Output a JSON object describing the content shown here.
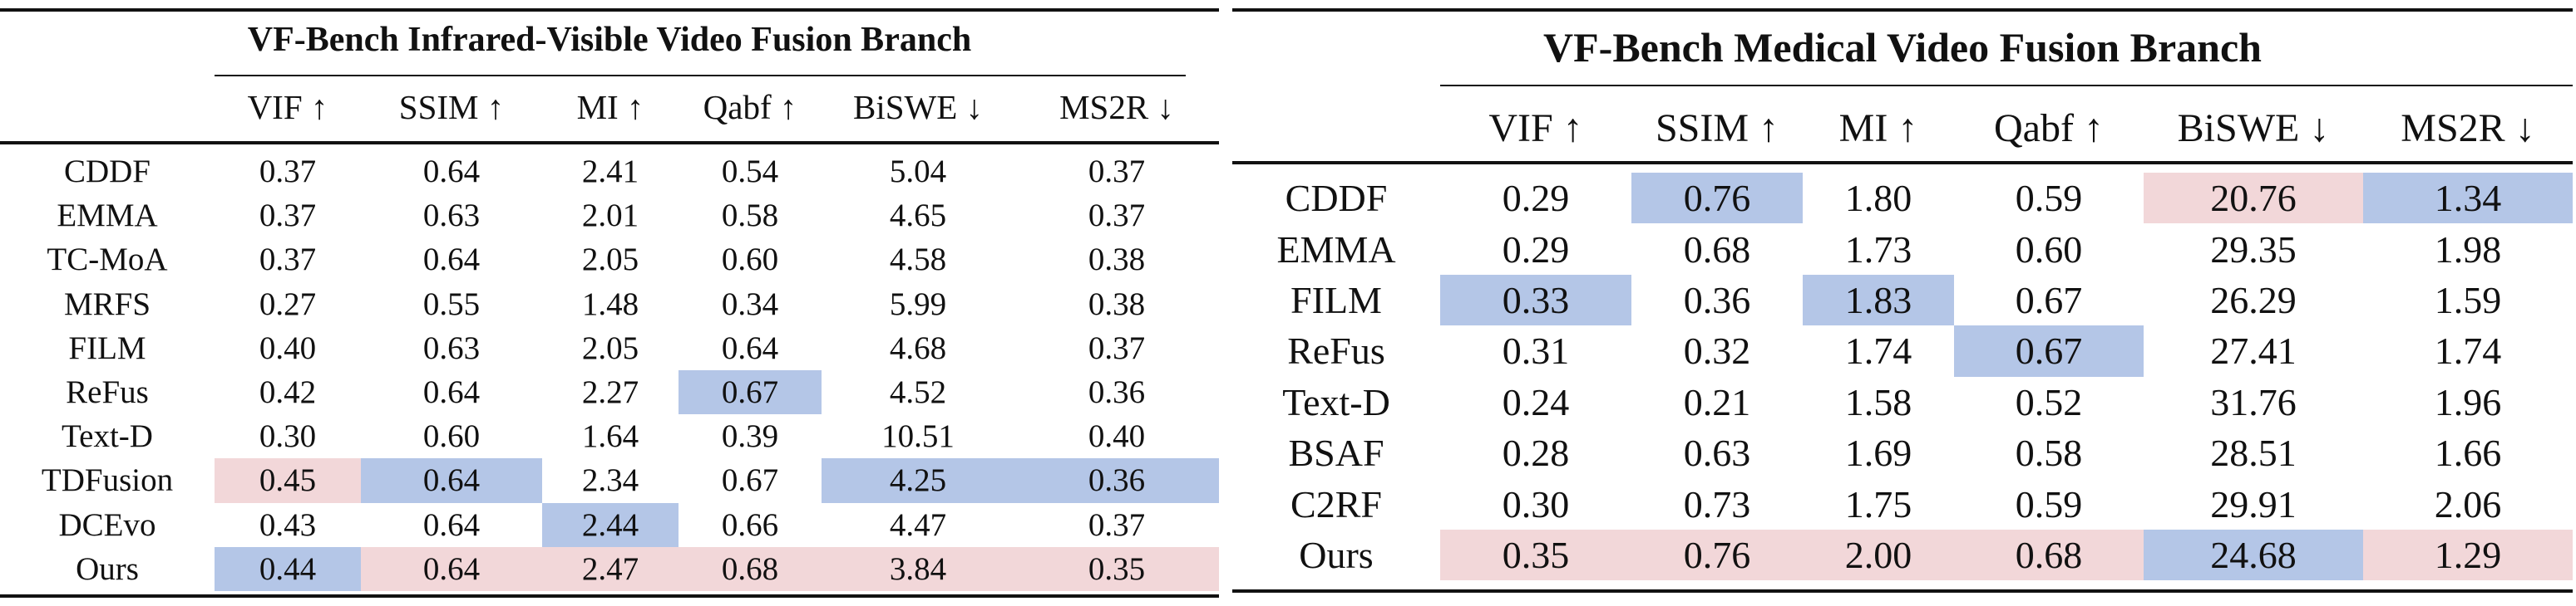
{
  "left_table": {
    "title": "VF-Bench Infrared-Visible Video Fusion Branch",
    "headers": [
      "VIF ↑",
      "SSIM ↑",
      "MI ↑",
      "Qabf ↑",
      "BiSWE ↓",
      "MS2R ↓"
    ],
    "rows": [
      {
        "method": "CDDF",
        "values": [
          "0.37",
          "0.64",
          "2.41",
          "0.54",
          "5.04",
          "0.37"
        ],
        "highlight": [
          "",
          "",
          "",
          "",
          "",
          ""
        ]
      },
      {
        "method": "EMMA",
        "values": [
          "0.37",
          "0.63",
          "2.01",
          "0.58",
          "4.65",
          "0.37"
        ],
        "highlight": [
          "",
          "",
          "",
          "",
          "",
          ""
        ]
      },
      {
        "method": "TC-MoA",
        "values": [
          "0.37",
          "0.64",
          "2.05",
          "0.60",
          "4.58",
          "0.38"
        ],
        "highlight": [
          "",
          "",
          "",
          "",
          "",
          ""
        ]
      },
      {
        "method": "MRFS",
        "values": [
          "0.27",
          "0.55",
          "1.48",
          "0.34",
          "5.99",
          "0.38"
        ],
        "highlight": [
          "",
          "",
          "",
          "",
          "",
          ""
        ]
      },
      {
        "method": "FILM",
        "values": [
          "0.40",
          "0.63",
          "2.05",
          "0.64",
          "4.68",
          "0.37"
        ],
        "highlight": [
          "",
          "",
          "",
          "",
          "",
          ""
        ]
      },
      {
        "method": "ReFus",
        "values": [
          "0.42",
          "0.64",
          "2.27",
          "0.67",
          "4.52",
          "0.36"
        ],
        "highlight": [
          "",
          "",
          "",
          "blue",
          "",
          ""
        ]
      },
      {
        "method": "Text-D",
        "values": [
          "0.30",
          "0.60",
          "1.64",
          "0.39",
          "10.51",
          "0.40"
        ],
        "highlight": [
          "",
          "",
          "",
          "",
          "",
          ""
        ]
      },
      {
        "method": "TDFusion",
        "values": [
          "0.45",
          "0.64",
          "2.34",
          "0.67",
          "4.25",
          "0.36"
        ],
        "highlight": [
          "pink",
          "blue",
          "",
          "",
          "blue",
          "blue"
        ]
      },
      {
        "method": "DCEvo",
        "values": [
          "0.43",
          "0.64",
          "2.44",
          "0.66",
          "4.47",
          "0.37"
        ],
        "highlight": [
          "",
          "",
          "blue",
          "",
          "",
          ""
        ]
      },
      {
        "method": "Ours",
        "values": [
          "0.44",
          "0.64",
          "2.47",
          "0.68",
          "3.84",
          "0.35"
        ],
        "highlight": [
          "blue",
          "pink",
          "pink",
          "pink",
          "pink",
          "pink"
        ]
      }
    ]
  },
  "right_table": {
    "title": "VF-Bench Medical Video Fusion Branch",
    "headers": [
      "VIF ↑",
      "SSIM ↑",
      "MI ↑",
      "Qabf ↑",
      "BiSWE ↓",
      "MS2R ↓"
    ],
    "rows": [
      {
        "method": "CDDF",
        "values": [
          "0.29",
          "0.76",
          "1.80",
          "0.59",
          "20.76",
          "1.34"
        ],
        "highlight": [
          "",
          "blue",
          "",
          "",
          "pink",
          "blue"
        ]
      },
      {
        "method": "EMMA",
        "values": [
          "0.29",
          "0.68",
          "1.73",
          "0.60",
          "29.35",
          "1.98"
        ],
        "highlight": [
          "",
          "",
          "",
          "",
          "",
          ""
        ]
      },
      {
        "method": "FILM",
        "values": [
          "0.33",
          "0.36",
          "1.83",
          "0.67",
          "26.29",
          "1.59"
        ],
        "highlight": [
          "blue",
          "",
          "blue",
          "",
          "",
          ""
        ]
      },
      {
        "method": "ReFus",
        "values": [
          "0.31",
          "0.32",
          "1.74",
          "0.67",
          "27.41",
          "1.74"
        ],
        "highlight": [
          "",
          "",
          "",
          "blue",
          "",
          ""
        ]
      },
      {
        "method": "Text-D",
        "values": [
          "0.24",
          "0.21",
          "1.58",
          "0.52",
          "31.76",
          "1.96"
        ],
        "highlight": [
          "",
          "",
          "",
          "",
          "",
          ""
        ]
      },
      {
        "method": "BSAF",
        "values": [
          "0.28",
          "0.63",
          "1.69",
          "0.58",
          "28.51",
          "1.66"
        ],
        "highlight": [
          "",
          "",
          "",
          "",
          "",
          ""
        ]
      },
      {
        "method": "C2RF",
        "values": [
          "0.30",
          "0.73",
          "1.75",
          "0.59",
          "29.91",
          "2.06"
        ],
        "highlight": [
          "",
          "",
          "",
          "",
          "",
          ""
        ]
      },
      {
        "method": "Ours",
        "values": [
          "0.35",
          "0.76",
          "2.00",
          "0.68",
          "24.68",
          "1.29"
        ],
        "highlight": [
          "pink",
          "pink",
          "pink",
          "pink",
          "blue",
          "pink"
        ]
      }
    ]
  },
  "colors": {
    "best_blue": "#b4c6e7",
    "second_pink": "#f2d7d9",
    "rule": "#111111"
  }
}
